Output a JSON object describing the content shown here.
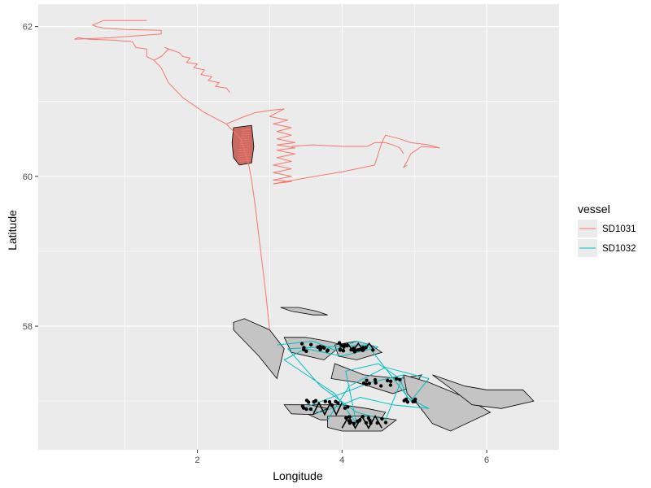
{
  "chart_data": {
    "type": "line",
    "xlabel": "Longitude",
    "ylabel": "Latitude",
    "xlim": [
      -0.2,
      7.0
    ],
    "ylim": [
      56.35,
      62.3
    ],
    "x_ticks": [
      2,
      4,
      6
    ],
    "y_ticks": [
      58,
      60,
      62
    ],
    "x_tick_labels": [
      "2",
      "4",
      "6"
    ],
    "y_tick_labels": [
      "58",
      "60",
      "62"
    ],
    "grid": true,
    "panel_background": "#ebebeb",
    "legend": {
      "title": "vessel",
      "placement": "right",
      "entries": [
        "SD1031",
        "SD1032"
      ]
    },
    "series": [
      {
        "name": "SD1031",
        "color": "#f8766d",
        "tracks": [
          [
            [
              3.0,
              57.95
            ],
            [
              2.95,
              58.4
            ],
            [
              2.9,
              58.8
            ],
            [
              2.85,
              59.2
            ],
            [
              2.8,
              59.6
            ],
            [
              2.75,
              59.95
            ],
            [
              2.7,
              60.2
            ],
            [
              2.6,
              60.5
            ],
            [
              2.4,
              60.7
            ],
            [
              2.1,
              60.85
            ],
            [
              1.8,
              61.05
            ],
            [
              1.6,
              61.25
            ],
            [
              1.5,
              61.45
            ],
            [
              1.4,
              61.55
            ]
          ],
          [
            [
              1.4,
              61.55
            ],
            [
              1.3,
              61.6
            ],
            [
              1.3,
              61.7
            ],
            [
              1.15,
              61.72
            ],
            [
              1.1,
              61.8
            ],
            [
              0.8,
              61.82
            ],
            [
              0.5,
              61.83
            ],
            [
              0.35,
              61.85
            ],
            [
              0.3,
              61.83
            ]
          ],
          [
            [
              0.3,
              61.83
            ],
            [
              0.8,
              61.85
            ],
            [
              1.2,
              61.88
            ],
            [
              1.5,
              61.9
            ],
            [
              1.5,
              61.95
            ],
            [
              1.0,
              61.96
            ],
            [
              0.7,
              61.98
            ],
            [
              0.6,
              62.0
            ],
            [
              0.55,
              62.02
            ],
            [
              0.7,
              62.08
            ],
            [
              1.0,
              62.08
            ],
            [
              1.3,
              62.08
            ]
          ],
          [
            [
              1.4,
              61.55
            ],
            [
              1.5,
              61.6
            ],
            [
              1.6,
              61.7
            ],
            [
              1.55,
              61.72
            ],
            [
              1.75,
              61.65
            ],
            [
              1.8,
              61.6
            ],
            [
              1.9,
              61.58
            ],
            [
              1.85,
              61.52
            ],
            [
              2.0,
              61.5
            ],
            [
              1.95,
              61.45
            ],
            [
              2.1,
              61.42
            ],
            [
              2.05,
              61.36
            ],
            [
              2.2,
              61.33
            ],
            [
              2.15,
              61.28
            ],
            [
              2.3,
              61.25
            ],
            [
              2.25,
              61.2
            ],
            [
              2.4,
              61.18
            ],
            [
              2.45,
              61.12
            ]
          ],
          [
            [
              2.4,
              60.7
            ],
            [
              2.6,
              60.78
            ],
            [
              2.8,
              60.85
            ],
            [
              3.0,
              60.88
            ],
            [
              3.2,
              60.9
            ],
            [
              3.0,
              60.8
            ],
            [
              3.25,
              60.75
            ],
            [
              3.05,
              60.7
            ],
            [
              3.3,
              60.65
            ],
            [
              3.1,
              60.6
            ],
            [
              3.3,
              60.55
            ],
            [
              3.1,
              60.5
            ],
            [
              3.35,
              60.45
            ],
            [
              3.1,
              60.42
            ],
            [
              3.35,
              60.38
            ],
            [
              3.1,
              60.35
            ],
            [
              3.35,
              60.3
            ],
            [
              3.1,
              60.25
            ],
            [
              3.3,
              60.2
            ],
            [
              3.05,
              60.15
            ],
            [
              3.3,
              60.1
            ],
            [
              3.05,
              60.05
            ],
            [
              3.3,
              60.0
            ],
            [
              3.05,
              59.95
            ],
            [
              3.3,
              59.93
            ],
            [
              3.05,
              59.9
            ]
          ],
          [
            [
              3.05,
              59.9
            ],
            [
              3.5,
              59.98
            ],
            [
              4.0,
              60.06
            ],
            [
              4.45,
              60.15
            ],
            [
              4.5,
              60.3
            ],
            [
              4.55,
              60.45
            ],
            [
              4.6,
              60.55
            ],
            [
              4.8,
              60.5
            ],
            [
              4.95,
              60.45
            ],
            [
              5.2,
              60.42
            ],
            [
              5.35,
              60.38
            ],
            [
              5.1,
              60.4
            ],
            [
              4.95,
              60.3
            ],
            [
              4.9,
              60.2
            ],
            [
              4.85,
              60.12
            ],
            [
              4.9,
              60.15
            ]
          ],
          [
            [
              3.3,
              60.4
            ],
            [
              3.6,
              60.42
            ],
            [
              4.0,
              60.4
            ],
            [
              4.35,
              60.4
            ],
            [
              4.45,
              60.45
            ],
            [
              4.6,
              60.45
            ],
            [
              4.7,
              60.42
            ],
            [
              4.8,
              60.38
            ],
            [
              4.85,
              60.3
            ]
          ]
        ],
        "area_path": [
          [
            2.5,
            60.65
          ],
          [
            2.75,
            60.68
          ],
          [
            2.78,
            60.4
          ],
          [
            2.75,
            60.18
          ],
          [
            2.58,
            60.15
          ],
          [
            2.5,
            60.25
          ],
          [
            2.48,
            60.45
          ]
        ]
      },
      {
        "name": "SD1032",
        "color": "#00bfc4",
        "tracks": [
          [
            [
              3.1,
              57.75
            ],
            [
              3.6,
              57.8
            ],
            [
              3.9,
              57.68
            ],
            [
              4.2,
              57.8
            ],
            [
              4.5,
              57.72
            ],
            [
              4.0,
              57.6
            ],
            [
              3.5,
              57.7
            ],
            [
              3.2,
              57.55
            ],
            [
              3.9,
              57.1
            ],
            [
              4.2,
              56.7
            ],
            [
              4.05,
              57.4
            ],
            [
              4.5,
              57.5
            ],
            [
              4.8,
              57.3
            ],
            [
              4.9,
              57.05
            ],
            [
              5.2,
              56.9
            ],
            [
              4.7,
              56.95
            ],
            [
              4.25,
              57.05
            ],
            [
              4.0,
              56.95
            ],
            [
              3.7,
              56.85
            ],
            [
              3.45,
              56.9
            ],
            [
              4.4,
              57.25
            ],
            [
              4.85,
              57.35
            ],
            [
              4.6,
              56.75
            ],
            [
              4.2,
              56.85
            ],
            [
              3.7,
              57.2
            ],
            [
              3.25,
              57.7
            ],
            [
              4.35,
              57.75
            ],
            [
              4.95,
              57.0
            ],
            [
              5.2,
              57.3
            ],
            [
              4.6,
              57.45
            ],
            [
              4.1,
              57.2
            ],
            [
              3.8,
              56.75
            ]
          ]
        ]
      }
    ],
    "survey_areas_count": 9
  }
}
